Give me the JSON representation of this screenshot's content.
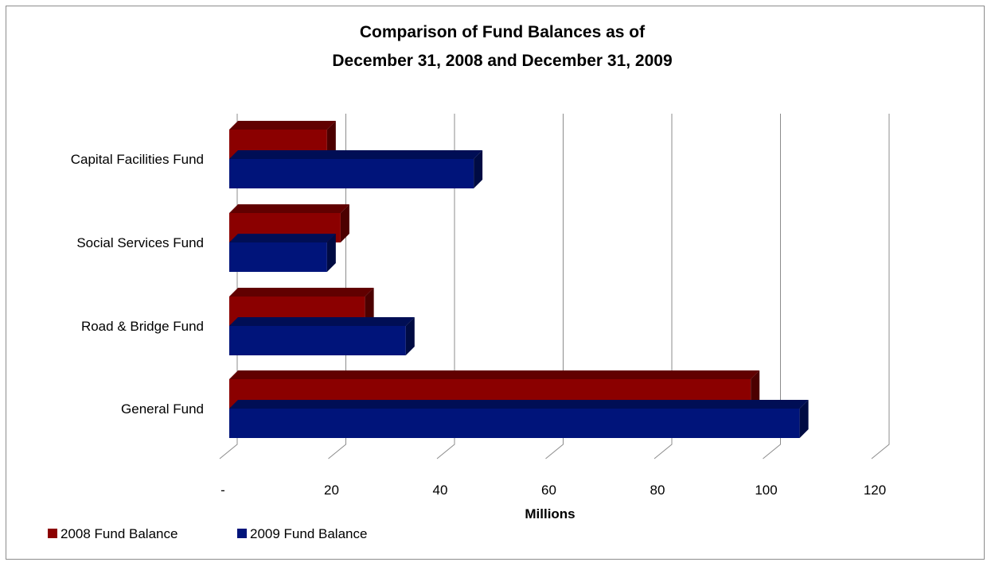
{
  "chart_data": {
    "type": "bar",
    "orientation": "horizontal",
    "title_lines": [
      "Comparison of Fund Balances as of",
      "December 31, 2008 and December 31, 2009"
    ],
    "categories": [
      "Capital Facilities Fund",
      "Social Services Fund",
      "Road & Bridge Fund",
      "General Fund"
    ],
    "series": [
      {
        "name": "2008 Fund Balance",
        "color": "#8b0000",
        "values": [
          18,
          20.5,
          25,
          96
        ]
      },
      {
        "name": "2009 Fund Balance",
        "color": "#00147a",
        "values": [
          45,
          18,
          32.5,
          105
        ]
      }
    ],
    "xlabel": "Millions",
    "xlim": [
      0,
      120
    ],
    "xticks": [
      {
        "value": 0,
        "label": "-"
      },
      {
        "value": 20,
        "label": "20"
      },
      {
        "value": 40,
        "label": "40"
      },
      {
        "value": 60,
        "label": "60"
      },
      {
        "value": 80,
        "label": "80"
      },
      {
        "value": 100,
        "label": "100"
      },
      {
        "value": 120,
        "label": "120"
      }
    ],
    "grid": true,
    "legend_position": "bottom-left"
  }
}
